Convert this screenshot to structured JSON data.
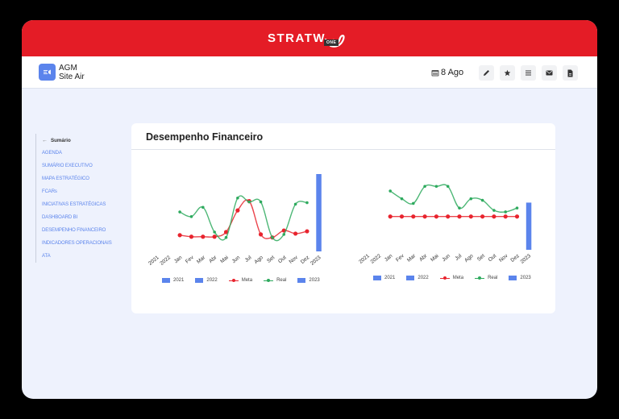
{
  "topbar": {
    "brand": "STRATW",
    "brand_suffix": "ONE",
    "color": "#e41c26"
  },
  "header": {
    "app_line1": "AGM",
    "app_line2": "Site Air",
    "date_icon": "calendar-icon",
    "date": "8 Ago",
    "actions": [
      {
        "name": "edit-button",
        "icon": "pencil-icon"
      },
      {
        "name": "favorite-button",
        "icon": "star-icon"
      },
      {
        "name": "menu-button",
        "icon": "list-icon"
      },
      {
        "name": "email-button",
        "icon": "mail-icon"
      },
      {
        "name": "document-button",
        "icon": "file-icon"
      }
    ]
  },
  "sidebar": {
    "back_label": "Sumário",
    "items": [
      {
        "label": "AGENDA"
      },
      {
        "label": "SUMÁRIO EXECUTIVO"
      },
      {
        "label": "MAPA ESTRATÉGICO"
      },
      {
        "label": "FCARs"
      },
      {
        "label": "INICIATIVAS ESTRATÉGICAS"
      },
      {
        "label": "DASHBOARD BI"
      },
      {
        "label": "DESEMPENHO FINANCEIRO"
      },
      {
        "label": "INDICADORES OPERACIONAIS"
      },
      {
        "label": "ATA"
      }
    ]
  },
  "card": {
    "title": "Desempenho Financeiro"
  },
  "colors": {
    "bar": "#5b84ec",
    "meta": "#e8242e",
    "real": "#2eaa5e"
  },
  "chart_data": [
    {
      "type": "line",
      "title": "",
      "categories": [
        "2021",
        "2022",
        "Jan",
        "Fev",
        "Mar",
        "Abr",
        "Mai",
        "Jun",
        "Jul",
        "Ago",
        "Set",
        "Out",
        "Nov",
        "Dez",
        "2023"
      ],
      "series": [
        {
          "name": "2021",
          "kind": "bar",
          "values": [
            null
          ]
        },
        {
          "name": "2022",
          "kind": "bar",
          "values": [
            null
          ]
        },
        {
          "name": "Meta",
          "kind": "line",
          "values": [
            21,
            19,
            19,
            19,
            25,
            53,
            65,
            22,
            18,
            27,
            23,
            26
          ]
        },
        {
          "name": "Real",
          "kind": "line",
          "values": [
            51,
            45,
            57,
            25,
            18,
            69,
            64,
            64,
            18,
            22,
            61,
            63
          ]
        },
        {
          "name": "2023",
          "kind": "bar",
          "values": [
            100
          ]
        }
      ],
      "legend": [
        "2021",
        "2022",
        "Meta",
        "Real",
        "2023"
      ],
      "legend_position": "bottom",
      "ylim": [
        0,
        100
      ],
      "grid": false
    },
    {
      "type": "line",
      "title": "",
      "categories": [
        "2021",
        "2022",
        "Jan",
        "Fev",
        "Mar",
        "Abr",
        "Mai",
        "Jun",
        "Jul",
        "Ago",
        "Set",
        "Out",
        "Nov",
        "Dez",
        "2023"
      ],
      "series": [
        {
          "name": "2021",
          "kind": "bar",
          "values": [
            null
          ]
        },
        {
          "name": "2022",
          "kind": "bar",
          "values": [
            null
          ]
        },
        {
          "name": "Meta",
          "kind": "line",
          "values": [
            43,
            43,
            43,
            43,
            43,
            43,
            43,
            43,
            43,
            43,
            43,
            43
          ]
        },
        {
          "name": "Real",
          "kind": "line",
          "values": [
            76,
            66,
            60,
            82,
            82,
            82,
            54,
            66,
            64,
            51,
            49,
            54
          ]
        },
        {
          "name": "2023",
          "kind": "bar",
          "values": [
            61
          ]
        }
      ],
      "legend": [
        "2021",
        "2022",
        "Meta",
        "Real",
        "2023"
      ],
      "legend_position": "bottom",
      "ylim": [
        0,
        100
      ],
      "grid": false
    }
  ]
}
